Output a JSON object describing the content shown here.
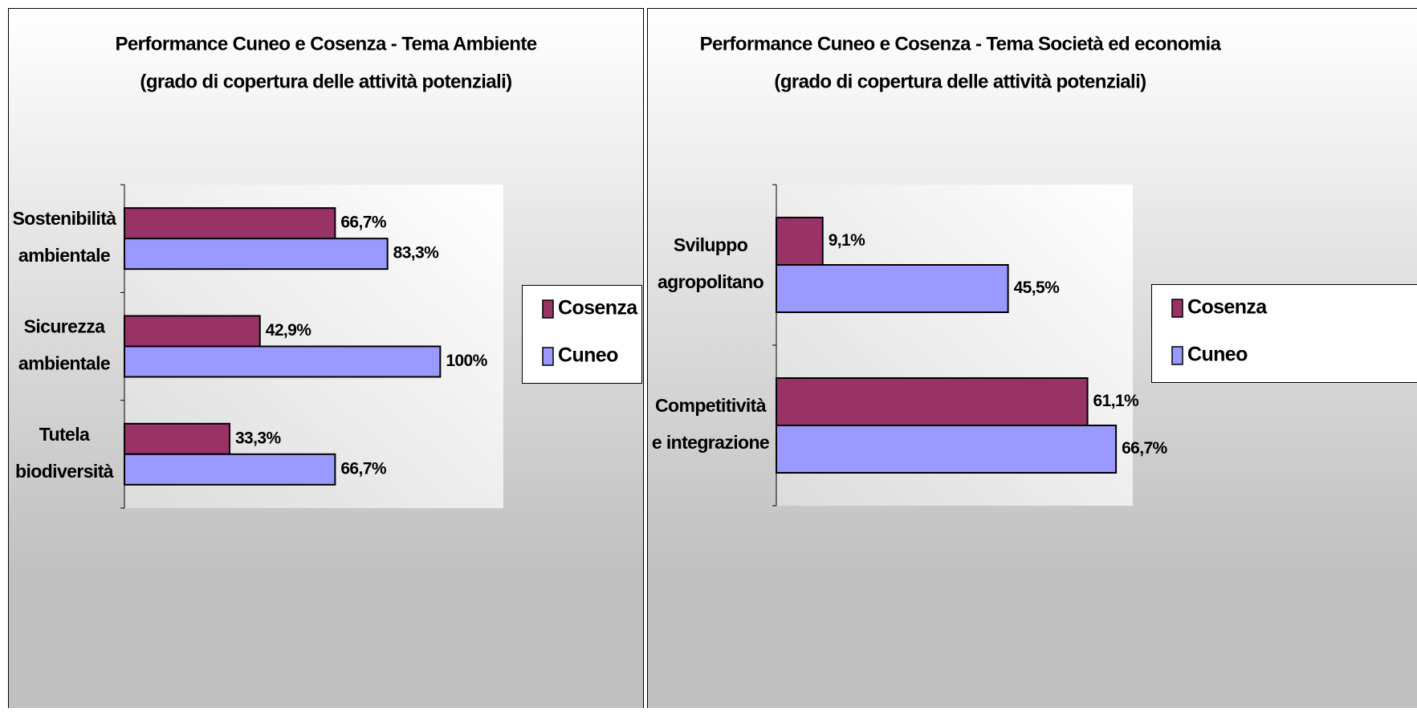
{
  "chart_data": [
    {
      "type": "bar",
      "orientation": "horizontal",
      "title": "Performance Cuneo e Cosenza - Tema Ambiente",
      "subtitle": "(grado di copertura delle attività potenziali)",
      "categories": [
        "Sostenibilità\nambientale",
        "Sicurezza\nambientale",
        "Tutela\nbiodiversità"
      ],
      "series": [
        {
          "name": "Cosenza",
          "color": "#993366",
          "values": [
            66.7,
            42.9,
            33.3
          ],
          "value_labels": [
            "66,7%",
            "42,9%",
            "33,3%"
          ]
        },
        {
          "name": "Cuneo",
          "color": "#9999ff",
          "values": [
            83.3,
            100,
            66.7
          ],
          "value_labels": [
            "83,3%",
            "100%",
            "66,7%"
          ]
        }
      ],
      "xlim": [
        0,
        120
      ],
      "legend": "right"
    },
    {
      "type": "bar",
      "orientation": "horizontal",
      "title": "Performance Cuneo e Cosenza - Tema Società ed economia",
      "subtitle": "(grado di copertura delle attività potenziali)",
      "categories": [
        "Sviluppo\nagropolitano",
        "Competitività\ne integrazione"
      ],
      "series": [
        {
          "name": "Cosenza",
          "color": "#993366",
          "values": [
            9.1,
            61.1
          ],
          "value_labels": [
            "9,1%",
            "61,1%"
          ]
        },
        {
          "name": "Cuneo",
          "color": "#9999ff",
          "values": [
            45.5,
            66.7
          ],
          "value_labels": [
            "45,5%",
            "66,7%"
          ]
        }
      ],
      "xlim": [
        0,
        70
      ],
      "legend": "right"
    }
  ]
}
